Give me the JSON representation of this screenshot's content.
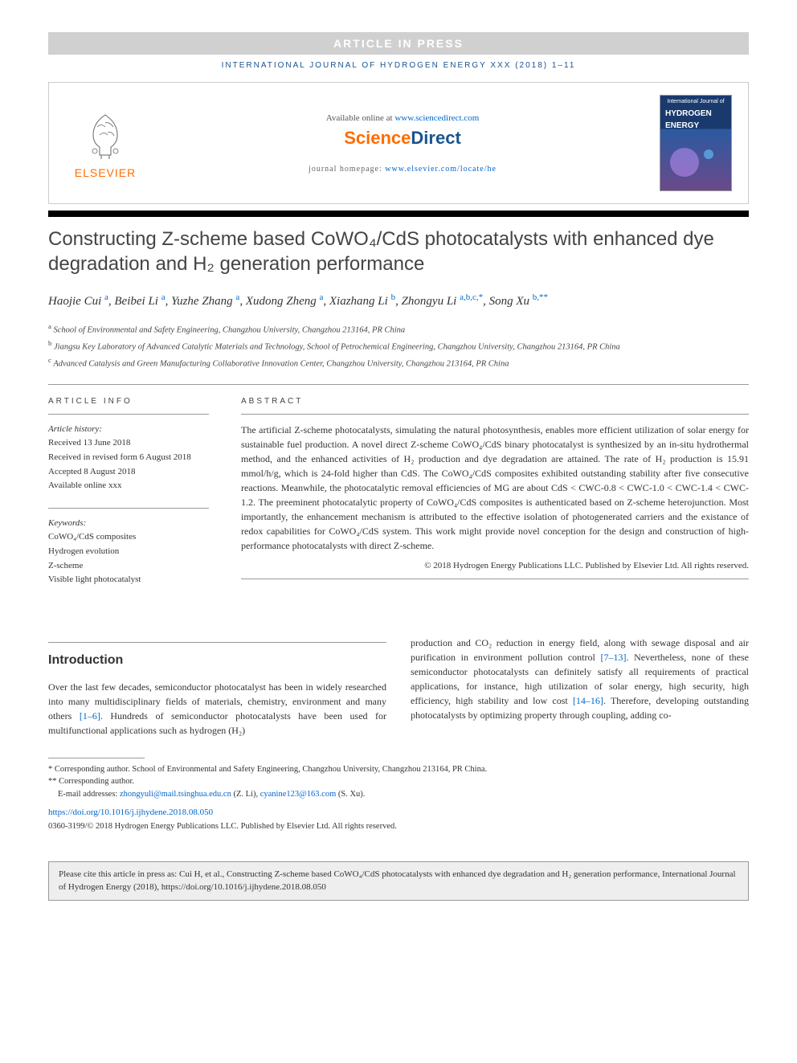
{
  "banner": {
    "article_in_press": "ARTICLE IN PRESS",
    "journal_ref": "INTERNATIONAL JOURNAL OF HYDROGEN ENERGY XXX (2018) 1–11"
  },
  "header": {
    "elsevier": "ELSEVIER",
    "available_prefix": "Available online at ",
    "available_link": "www.sciencedirect.com",
    "sciencedirect_part1": "Science",
    "sciencedirect_part2": "Direct",
    "homepage_prefix": "journal homepage: ",
    "homepage_link": "www.elsevier.com/locate/he",
    "cover_smalltitle": "International Journal of",
    "cover_hydrogen": "HYDROGEN",
    "cover_energy": "ENERGY"
  },
  "title": "Constructing Z-scheme based CoWO₄/CdS photocatalysts with enhanced dye degradation and H₂ generation performance",
  "authors_html": "Haojie Cui <a>a</a>, Beibei Li <a>a</a>, Yuzhe Zhang <a>a</a>, Xudong Zheng <a>a</a>, Xiazhang Li <a>b</a>, Zhongyu Li <a>a,b,c,*</a>, Song Xu <a>b,**</a>",
  "affiliations": {
    "a": "School of Environmental and Safety Engineering, Changzhou University, Changzhou 213164, PR China",
    "b": "Jiangsu Key Laboratory of Advanced Catalytic Materials and Technology, School of Petrochemical Engineering, Changzhou University, Changzhou 213164, PR China",
    "c": "Advanced Catalysis and Green Manufacturing Collaborative Innovation Center, Changzhou University, Changzhou 213164, PR China"
  },
  "article_info": {
    "heading": "ARTICLE INFO",
    "history_label": "Article history:",
    "received": "Received 13 June 2018",
    "revised": "Received in revised form 6 August 2018",
    "accepted": "Accepted 8 August 2018",
    "available": "Available online xxx",
    "keywords_label": "Keywords:",
    "keywords": [
      "CoWO₄/CdS composites",
      "Hydrogen evolution",
      "Z-scheme",
      "Visible light photocatalyst"
    ]
  },
  "abstract": {
    "heading": "ABSTRACT",
    "text": "The artificial Z-scheme photocatalysts, simulating the natural photosynthesis, enables more efficient utilization of solar energy for sustainable fuel production. A novel direct Z-scheme CoWO₄/CdS binary photocatalyst is synthesized by an in-situ hydrothermal method, and the enhanced activities of H₂ production and dye degradation are attained. The rate of H₂ production is 15.91 mmol/h/g, which is 24-fold higher than CdS. The CoWO₄/CdS composites exhibited outstanding stability after five consecutive reactions. Meanwhile, the photocatalytic removal efficiencies of MG are about CdS < CWC-0.8 < CWC-1.0 < CWC-1.4 < CWC-1.2. The preeminent photocatalytic property of CoWO₄/CdS composites is authenticated based on Z-scheme heterojunction. Most importantly, the enhancement mechanism is attributed to the effective isolation of photogenerated carriers and the existance of redox capabilities for CoWO₄/CdS system. This work might provide novel conception for the design and construction of high-performance photocatalysts with direct Z-scheme.",
    "copyright": "© 2018 Hydrogen Energy Publications LLC. Published by Elsevier Ltd. All rights reserved."
  },
  "intro": {
    "heading": "Introduction",
    "col1": "Over the last few decades, semiconductor photocatalyst has been in widely researched into many multidisciplinary fields of materials, chemistry, environment and many others [1–6]. Hundreds of semiconductor photocatalysts have been used for multifunctional applications such as hydrogen (H₂)",
    "col2": "production and CO₂ reduction in energy field, along with sewage disposal and air purification in environment pollution control [7–13]. Nevertheless, none of these semiconductor photocatalysts can definitely satisfy all requirements of practical applications, for instance, high utilization of solar energy, high security, high efficiency, high stability and low cost [14–16]. Therefore, developing outstanding photocatalysts by optimizing property through coupling, adding co-",
    "ref1": "[1–6]",
    "ref2": "[7–13]",
    "ref3": "[14–16]"
  },
  "footer": {
    "corr1": "* Corresponding author. School of Environmental and Safety Engineering, Changzhou University, Changzhou 213164, PR China.",
    "corr2": "** Corresponding author.",
    "email_label": "E-mail addresses: ",
    "email1": "zhongyuli@mail.tsinghua.edu.cn",
    "email1_name": " (Z. Li), ",
    "email2": "cyanine123@163.com",
    "email2_name": " (S. Xu).",
    "doi": "https://doi.org/10.1016/j.ijhydene.2018.08.050",
    "copyright": "0360-3199/© 2018 Hydrogen Energy Publications LLC. Published by Elsevier Ltd. All rights reserved."
  },
  "citebox": "Please cite this article in press as: Cui H, et al., Constructing Z-scheme based CoWO₄/CdS photocatalysts with enhanced dye degradation and H₂ generation performance, International Journal of Hydrogen Energy (2018), https://doi.org/10.1016/j.ijhydene.2018.08.050"
}
